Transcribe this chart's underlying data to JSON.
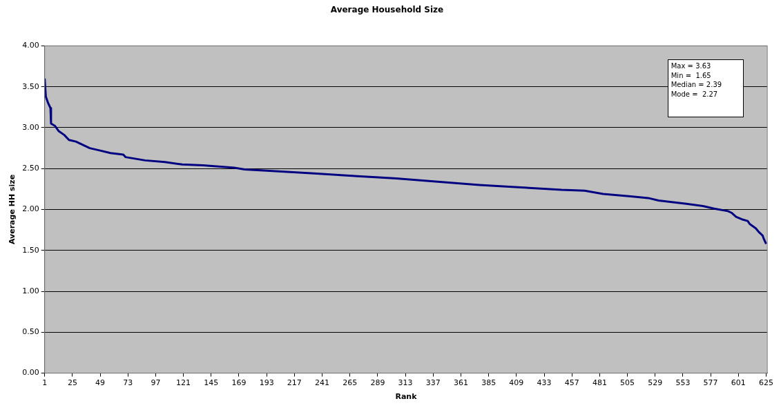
{
  "chart_data": {
    "type": "line",
    "title": "Average Household Size",
    "xlabel": "Rank",
    "ylabel": "Average HH size",
    "x": [
      1,
      2,
      4,
      6,
      6.5,
      10,
      13,
      18,
      22,
      28,
      34,
      40,
      49,
      58,
      69,
      71,
      88,
      105,
      120,
      138,
      165,
      174,
      198,
      234,
      269,
      305,
      341,
      377,
      413,
      448,
      468,
      484,
      508,
      523,
      532,
      556,
      571,
      580,
      592,
      595,
      599,
      604,
      609,
      611,
      616,
      619,
      622,
      623,
      625
    ],
    "series": [
      {
        "color": "#000080",
        "values": [
          3.6,
          3.38,
          3.3,
          3.24,
          3.05,
          3.02,
          2.96,
          2.91,
          2.85,
          2.83,
          2.79,
          2.75,
          2.72,
          2.69,
          2.67,
          2.64,
          2.6,
          2.58,
          2.55,
          2.54,
          2.51,
          2.49,
          2.47,
          2.44,
          2.41,
          2.38,
          2.34,
          2.3,
          2.27,
          2.24,
          2.23,
          2.19,
          2.16,
          2.14,
          2.11,
          2.07,
          2.04,
          2.01,
          1.98,
          1.96,
          1.91,
          1.88,
          1.86,
          1.82,
          1.77,
          1.72,
          1.68,
          1.64,
          1.58
        ]
      }
    ],
    "xlim": [
      1,
      626
    ],
    "xticks": [
      1,
      25,
      49,
      73,
      97,
      121,
      145,
      169,
      193,
      217,
      241,
      265,
      289,
      313,
      337,
      361,
      385,
      409,
      433,
      457,
      481,
      505,
      529,
      553,
      577,
      601,
      625
    ],
    "ylim": [
      0,
      4
    ],
    "yticks": [
      {
        "value": 0,
        "label": "0.00"
      },
      {
        "value": 0.5,
        "label": "0.50"
      },
      {
        "value": 1,
        "label": "1.00"
      },
      {
        "value": 1.5,
        "label": "1.50"
      },
      {
        "value": 2,
        "label": "2.00"
      },
      {
        "value": 2.5,
        "label": "2.50"
      },
      {
        "value": 3,
        "label": "3.00"
      },
      {
        "value": 3.5,
        "label": "3.50"
      },
      {
        "value": 4,
        "label": "4.00"
      }
    ],
    "grid": "y",
    "legend": false,
    "annotations": [
      "Max = 3.63",
      "Min =  1.65",
      "Median = 2.39",
      "Mode =  2.27"
    ]
  }
}
